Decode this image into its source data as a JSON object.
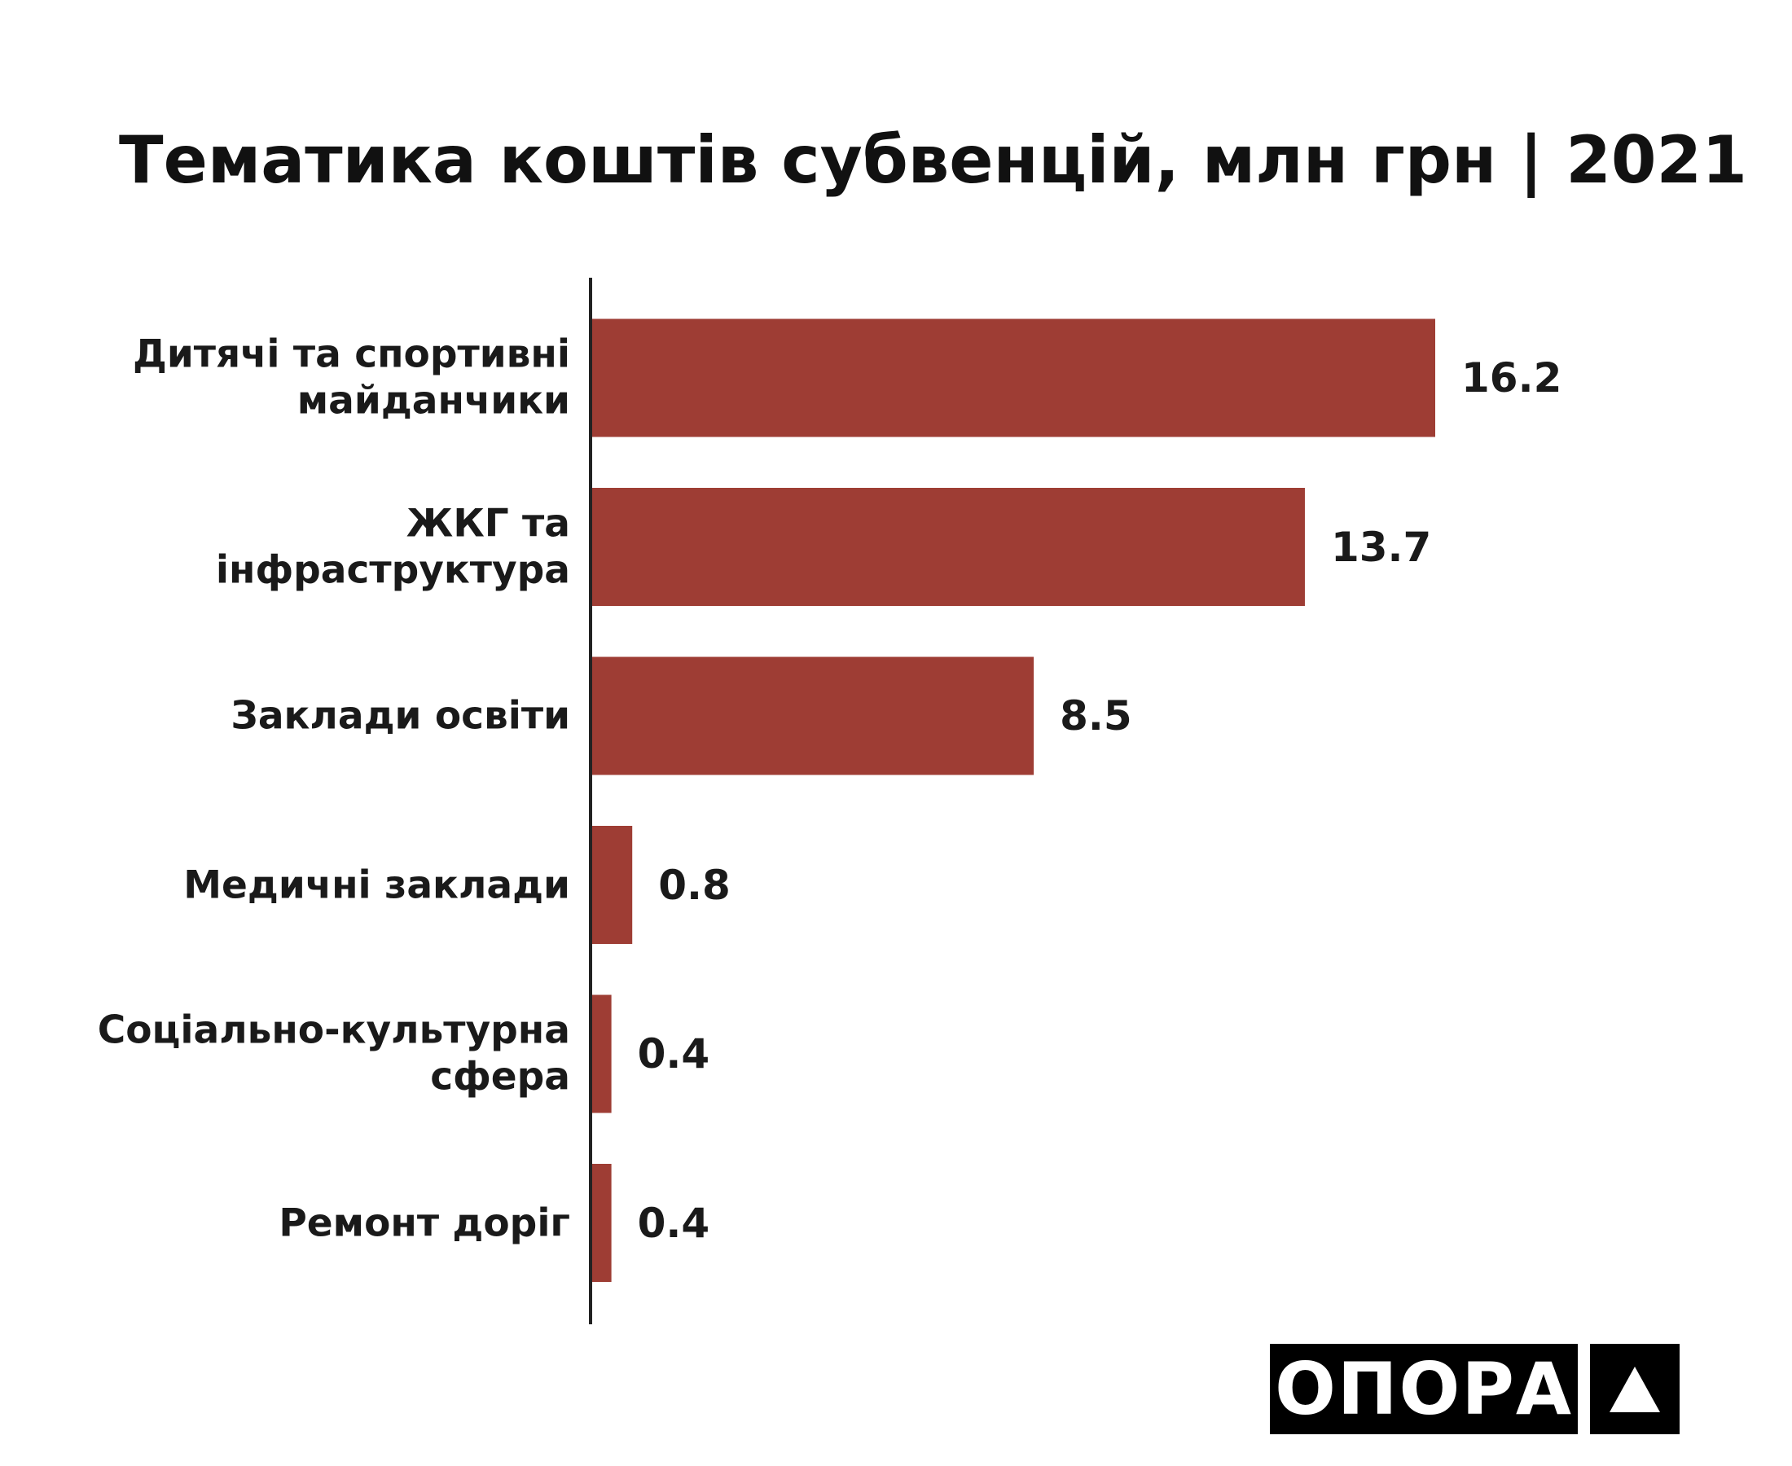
{
  "chart_data": {
    "type": "bar",
    "orientation": "horizontal",
    "title": "Тематика коштів субвенцій, млн грн | 2021",
    "categories": [
      "Дитячі та спортивні майданчики",
      "ЖКГ та інфраструктура",
      "Заклади освіти",
      "Медичні заклади",
      "Соціально-культурна сфера",
      "Ремонт доріг"
    ],
    "values": [
      16.2,
      13.7,
      8.5,
      0.8,
      0.4,
      0.4
    ],
    "color": "#9e3d34"
  },
  "logo": "ОПОРА"
}
